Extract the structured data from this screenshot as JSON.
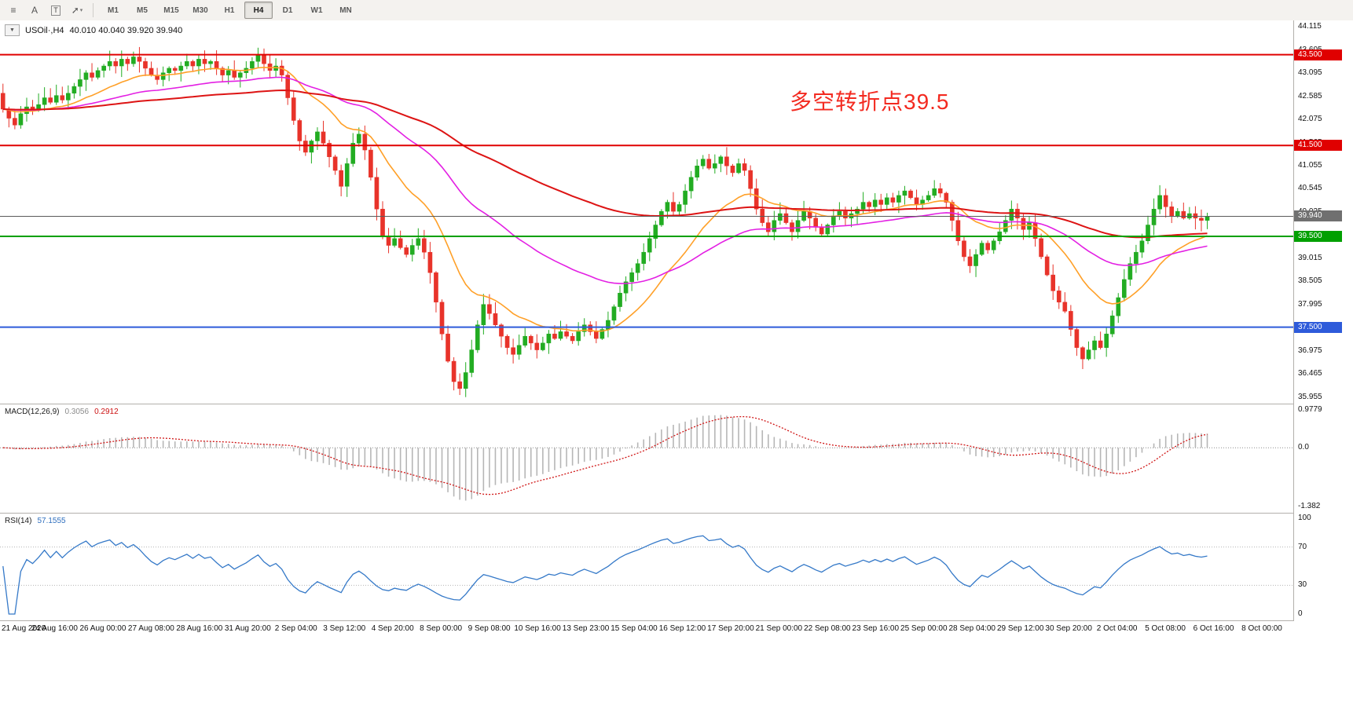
{
  "toolbar": {
    "tools": [
      {
        "name": "market-watch",
        "glyph": "≡"
      },
      {
        "name": "font",
        "glyph": "A"
      },
      {
        "name": "text-label",
        "glyph": "T"
      },
      {
        "name": "indicators",
        "glyph": "➚",
        "caret": "▾"
      }
    ],
    "timeframes": [
      "M1",
      "M5",
      "M15",
      "M30",
      "H1",
      "H4",
      "D1",
      "W1",
      "MN"
    ],
    "active_timeframe": "H4"
  },
  "chart": {
    "one_click_glyph": "▼",
    "symbol_title": "USOil·,H4",
    "ohlc_text": "40.010 40.040 39.920 39.940",
    "annotation": {
      "text": "多空转折点39.5",
      "color": "#f32a20"
    }
  },
  "macd_panel": {
    "name": "MACD(12,26,9)",
    "value_main": "0.3056",
    "value_signal": "0.2912",
    "scale_max": "0.9779",
    "scale_zero": "0.0",
    "scale_min": "-1.382"
  },
  "rsi_panel": {
    "name": "RSI(14)",
    "value": "57.1555",
    "scale_labels": [
      "100",
      "70",
      "30",
      "0"
    ]
  },
  "chart_data": {
    "type": "candlestick",
    "symbol": "USOil",
    "timeframe": "H4",
    "title": "USOil·,H4 40.010 40.040 39.920 39.940",
    "y_axis": {
      "min": 35.955,
      "max": 44.115,
      "tick_step": 0.51,
      "tick_labels": [
        "44.115",
        "43.605",
        "43.095",
        "42.585",
        "42.075",
        "41.565",
        "41.055",
        "40.545",
        "40.035",
        "39.525",
        "39.015",
        "38.505",
        "37.995",
        "37.485",
        "36.975",
        "36.465",
        "35.955"
      ]
    },
    "x_axis_labels": [
      "21 Aug 2020",
      "24 Aug 16:00",
      "26 Aug 00:00",
      "27 Aug 08:00",
      "28 Aug 16:00",
      "31 Aug 20:00",
      "2 Sep 04:00",
      "3 Sep 12:00",
      "4 Sep 20:00",
      "8 Sep 00:00",
      "9 Sep 08:00",
      "10 Sep 16:00",
      "13 Sep 23:00",
      "15 Sep 04:00",
      "16 Sep 12:00",
      "17 Sep 20:00",
      "21 Sep 00:00",
      "22 Sep 08:00",
      "23 Sep 16:00",
      "25 Sep 00:00",
      "28 Sep 04:00",
      "29 Sep 12:00",
      "30 Sep 20:00",
      "2 Oct 04:00",
      "5 Oct 08:00",
      "6 Oct 16:00",
      "8 Oct 00:00"
    ],
    "first_open": 42.65,
    "candles_per_day": 6,
    "right_margin_slots": 14,
    "closes": [
      42.3,
      42.1,
      41.95,
      42.2,
      42.35,
      42.3,
      42.4,
      42.55,
      42.45,
      42.6,
      42.5,
      42.65,
      42.8,
      42.95,
      43.1,
      43.0,
      43.15,
      43.25,
      43.35,
      43.25,
      43.4,
      43.3,
      43.45,
      43.35,
      43.2,
      43.05,
      42.95,
      43.1,
      43.2,
      43.15,
      43.25,
      43.35,
      43.25,
      43.4,
      43.3,
      43.35,
      43.2,
      43.05,
      43.15,
      43.0,
      43.1,
      43.2,
      43.35,
      43.5,
      43.3,
      43.15,
      43.25,
      43.05,
      42.55,
      42.05,
      41.6,
      41.35,
      41.6,
      41.8,
      41.55,
      41.25,
      40.95,
      40.6,
      41.1,
      41.55,
      41.75,
      41.4,
      40.8,
      40.1,
      39.5,
      39.3,
      39.45,
      39.25,
      39.1,
      39.3,
      39.45,
      39.15,
      38.7,
      38.05,
      37.35,
      36.75,
      36.3,
      36.15,
      36.5,
      37.0,
      37.55,
      38.0,
      37.8,
      37.55,
      37.3,
      37.05,
      36.9,
      37.1,
      37.3,
      37.15,
      37.0,
      37.15,
      37.35,
      37.25,
      37.4,
      37.3,
      37.2,
      37.4,
      37.55,
      37.4,
      37.25,
      37.45,
      37.65,
      37.95,
      38.25,
      38.5,
      38.7,
      38.9,
      39.15,
      39.45,
      39.75,
      40.05,
      40.25,
      40.05,
      40.2,
      40.5,
      40.8,
      41.05,
      41.2,
      41.0,
      41.1,
      41.25,
      41.05,
      40.9,
      41.1,
      40.95,
      40.55,
      40.1,
      39.8,
      39.6,
      39.85,
      40.0,
      39.8,
      39.6,
      39.85,
      40.05,
      39.9,
      39.7,
      39.55,
      39.75,
      39.95,
      40.05,
      39.9,
      40.0,
      40.1,
      40.25,
      40.15,
      40.3,
      40.2,
      40.35,
      40.25,
      40.4,
      40.5,
      40.35,
      40.2,
      40.3,
      40.4,
      40.55,
      40.45,
      40.25,
      39.85,
      39.4,
      39.05,
      38.85,
      39.1,
      39.35,
      39.2,
      39.4,
      39.6,
      39.85,
      40.1,
      39.9,
      39.65,
      39.8,
      39.45,
      39.05,
      38.65,
      38.3,
      38.05,
      37.85,
      37.45,
      37.05,
      36.8,
      37.0,
      37.2,
      37.05,
      37.35,
      37.75,
      38.15,
      38.55,
      38.9,
      39.15,
      39.4,
      39.75,
      40.1,
      40.4,
      40.15,
      39.95,
      40.05,
      39.9,
      40.0,
      39.9,
      39.85,
      39.94
    ],
    "horizontal_lines": [
      {
        "price": 43.5,
        "label": "43.500",
        "color": "#e00000"
      },
      {
        "price": 41.5,
        "label": "41.500",
        "color": "#e00000"
      },
      {
        "price": 39.5,
        "label": "39.500",
        "color": "#00a000"
      },
      {
        "price": 37.5,
        "label": "37.500",
        "color": "#2e5bda"
      }
    ],
    "current_price": {
      "price": 39.94,
      "label": "39.940",
      "color": "#707070"
    },
    "moving_averages": [
      {
        "period": 18,
        "color": "#ffa028"
      },
      {
        "period": 50,
        "color": "#e320e3"
      },
      {
        "period": 120,
        "color": "#dd1414"
      }
    ],
    "candle_colors": {
      "bull": "#22ac22",
      "bear": "#e8332a"
    },
    "indicators": [
      {
        "type": "MACD",
        "params": [
          12,
          26,
          9
        ],
        "values": [
          0.3056,
          0.2912
        ],
        "histogram_color": "#b6b6b6",
        "signal_color": "#d01616",
        "scale": {
          "max": 0.9779,
          "min": -1.382
        }
      },
      {
        "type": "RSI",
        "params": [
          14
        ],
        "value": 57.1555,
        "line_color": "#3579c8",
        "levels": [
          70,
          30
        ],
        "scale": {
          "max": 100,
          "min": 0
        }
      }
    ]
  }
}
